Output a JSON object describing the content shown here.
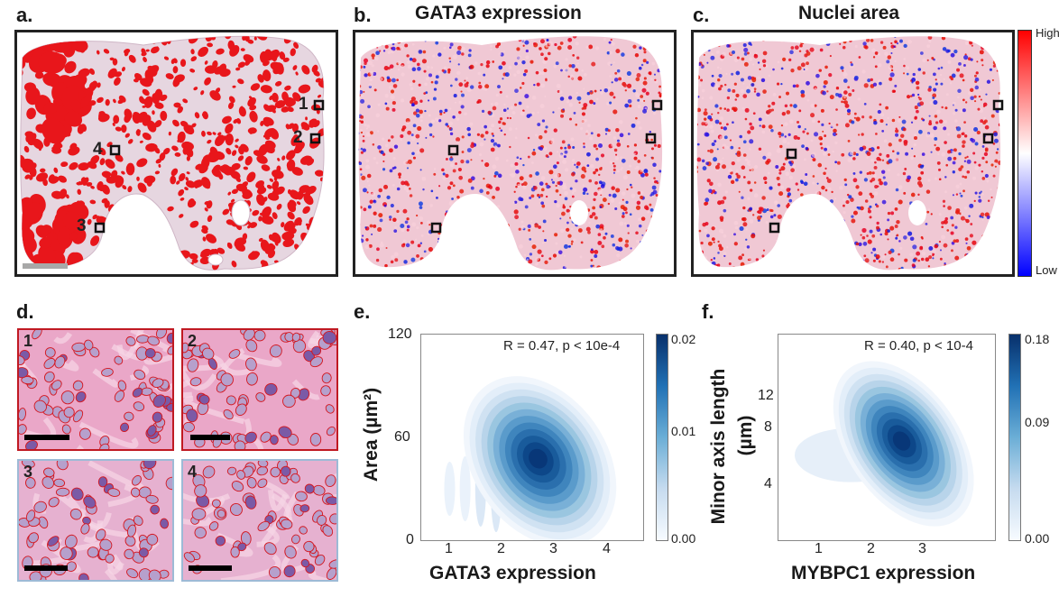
{
  "panels": {
    "a": {
      "label": "a.",
      "roi_labels": [
        "1",
        "2",
        "4",
        "3"
      ]
    },
    "b": {
      "label": "b.",
      "title": "GATA3 expression"
    },
    "c": {
      "label": "c.",
      "title": "Nuclei area",
      "cbar_high": "High",
      "cbar_low": "Low"
    },
    "d": {
      "label": "d.",
      "tiles": [
        "1",
        "2",
        "3",
        "4"
      ]
    },
    "e": {
      "label": "e.",
      "annotation": "R = 0.47, p < 10e-4",
      "xlabel": "GATA3 expression",
      "ylabel": "Area (µm²)",
      "xticks": [
        "1",
        "2",
        "3",
        "4"
      ],
      "yticks": [
        "0",
        "60",
        "120"
      ],
      "cbar_ticks": [
        "0.02",
        "0.01",
        "0.00"
      ]
    },
    "f": {
      "label": "f.",
      "annotation": "R = 0.40, p < 10-4",
      "xlabel": "MYBPC1 expression",
      "ylabel_line1": "Minor axis length",
      "ylabel_line2": "(µm)",
      "xticks": [
        "1",
        "2",
        "3"
      ],
      "yticks": [
        "12",
        "8",
        "4"
      ],
      "cbar_ticks": [
        "0.18",
        "0.09",
        "0.00"
      ]
    }
  },
  "chart_data": [
    {
      "type": "heatmap",
      "title": "",
      "xlabel": "GATA3 expression",
      "ylabel": "Area (µm²)",
      "xlim": [
        0.4,
        4.7
      ],
      "ylim": [
        0,
        120
      ],
      "peak": {
        "x": 2.7,
        "y": 46
      },
      "colorbar": {
        "min": 0.0,
        "max": 0.02
      },
      "annotation": "R = 0.47, p < 10e-4"
    },
    {
      "type": "heatmap",
      "title": "",
      "xlabel": "MYBPC1 expression",
      "ylabel": "Minor axis length (µm)",
      "xlim": [
        0.0,
        4.5
      ],
      "ylim": [
        0,
        14.5
      ],
      "peak": {
        "x": 2.6,
        "y": 6.8
      },
      "colorbar": {
        "min": 0.0,
        "max": 0.18
      },
      "annotation": "R = 0.40, p < 10-4"
    }
  ],
  "colors": {
    "tumor": "#e8161b",
    "tissue": "#eac5d3",
    "high": "#ff0000",
    "low": "#0000ff",
    "density_dark": "#08306b",
    "density_light": "#deebf7",
    "tile_red_border": "#c01922",
    "tile_blue_border": "#9dbad6"
  }
}
